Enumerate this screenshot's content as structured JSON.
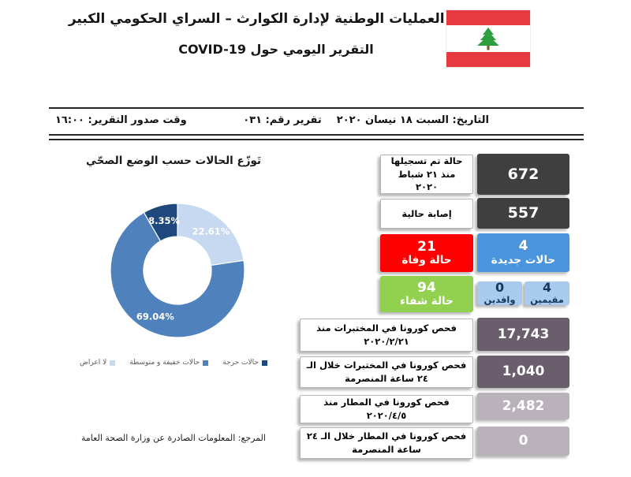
{
  "document": {
    "title_line1": "غرفة العمليات الوطنية لإدارة الكوارث – السراي الحكومي الكبير",
    "title_line2": "التقرير اليومي حول COVID-19"
  },
  "flag": {
    "country": "Lebanon",
    "red": "#E63940",
    "cedar_green": "#2E9E41",
    "trunk_brown": "#7C5B33"
  },
  "info_bar": {
    "date": "التاريخ: السبت ١٨ نيسان ٢٠٢٠",
    "report_no": "تقرير رقم: ٠٣١",
    "issue_time": "وقت صدور التقرير: ١٦:٠٠"
  },
  "chart_data": {
    "type": "pie",
    "donut": true,
    "title": "تَوزّع الحالات حسب الوضع الصحّي",
    "start_angle_deg_from_12_clockwise": 0,
    "legend_position": "bottom",
    "slices": [
      {
        "label": "لا اعراض",
        "value": 22.61,
        "display": "22.61%",
        "color": "#C6D9F1"
      },
      {
        "label": "حالات خفيفة و متوسطة",
        "value": 69.04,
        "display": "69.04%",
        "color": "#4F81BD"
      },
      {
        "label": "حالات حرجة",
        "value": 8.35,
        "display": "8.35%",
        "color": "#1F497D"
      }
    ]
  },
  "colors": {
    "dark": "#3F3F3F",
    "blue": "#4B94DE",
    "light_blue": "#A8CBEE",
    "light_blue_text": "#17375D",
    "red": "#FF0000",
    "green": "#92D050",
    "purple_dark": "#6A5D6C",
    "purple_light": "#B9B2BB"
  },
  "stats": {
    "registered_total": {
      "value": "672",
      "label": "حالة تم تسجيلها منذ ٢١ شباط ٢٠٢٠"
    },
    "current_cases": {
      "value": "557",
      "label": "إصابة حالية"
    },
    "new_cases": {
      "value": "4",
      "label": "حالات جديدة"
    },
    "deaths": {
      "value": "21",
      "label": "حالة وفاة"
    },
    "new_residents": {
      "value": "4",
      "label": "مقيمين"
    },
    "new_arrivals": {
      "value": "0",
      "label": "وافدين"
    },
    "recovered": {
      "value": "94",
      "label": "حالة شفاء"
    },
    "lab_tests_since": {
      "value": "17,743",
      "label": "فحص كورونا في المختبرات منذ ٢٠٢٠/٢/٢١"
    },
    "lab_tests_24h": {
      "value": "1,040",
      "label": "فحص كورونا في المختبرات خلال الـ ٢٤ ساعة المنصرمة"
    },
    "airport_tests_since": {
      "value": "2,482",
      "label": "فحص كورونا في المطار منذ ٢٠٢٠/٤/٥"
    },
    "airport_tests_24h": {
      "value": "0",
      "label": "فحص كورونا في المطار خلال الـ ٢٤ ساعة المنصرمة"
    }
  },
  "footer": {
    "reference": "المرجع: المعلومات الصادرة عن وزارة الصحة العامة"
  }
}
